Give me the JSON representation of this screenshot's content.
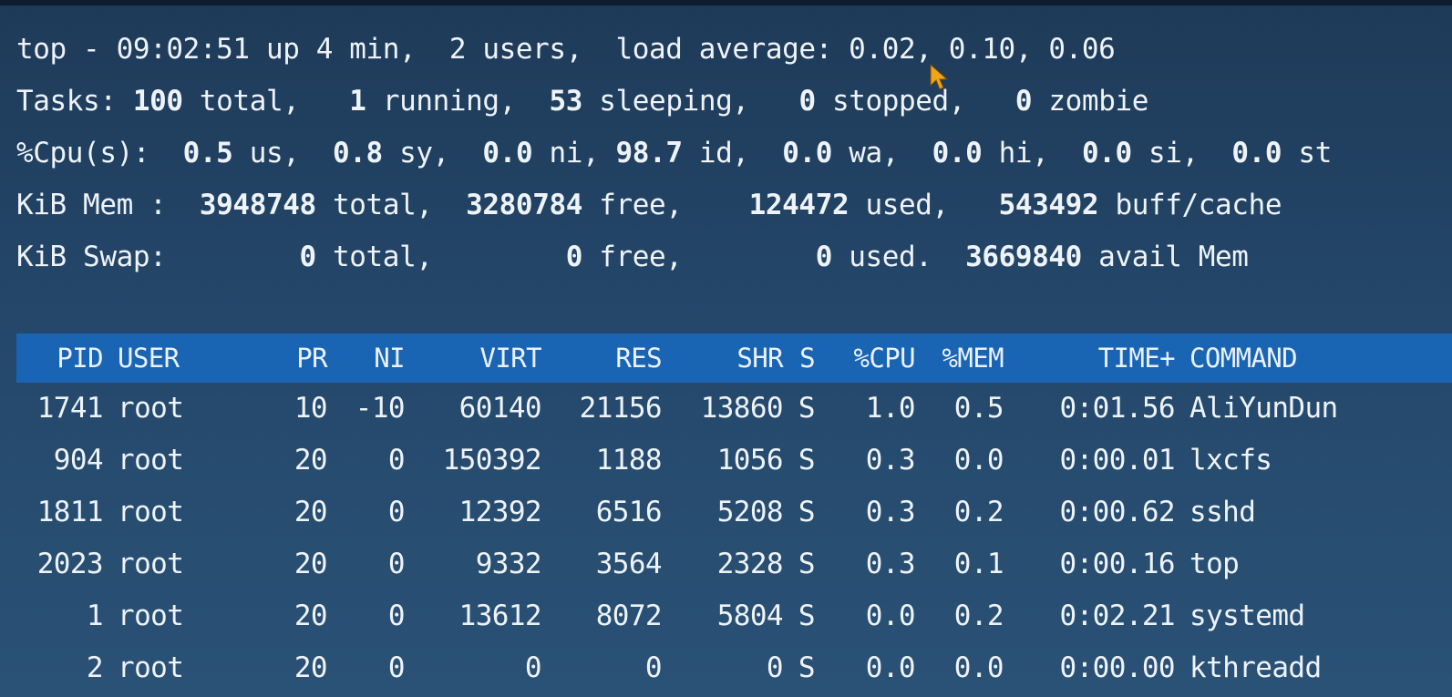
{
  "summary": {
    "l1": {
      "pre": "top - 09:02:51 up 4 min,  2 users,  load average: 0.02, 0.10, 0.06"
    },
    "l2": {
      "label": "Tasks: ",
      "total": "100",
      "total_lbl": " total,   ",
      "running": "1",
      "running_lbl": " running,  ",
      "sleeping": "53",
      "sleeping_lbl": " sleeping,   ",
      "stopped": "0",
      "stopped_lbl": " stopped,   ",
      "zombie": "0",
      "zombie_lbl": " zombie"
    },
    "l3": {
      "label": "%Cpu(s):  ",
      "us": "0.5",
      "us_lbl": " us,  ",
      "sy": "0.8",
      "sy_lbl": " sy,  ",
      "ni": "0.0",
      "ni_lbl": " ni, ",
      "id": "98.7",
      "id_lbl": " id,  ",
      "wa": "0.0",
      "wa_lbl": " wa,  ",
      "hi": "0.0",
      "hi_lbl": " hi,  ",
      "si": "0.0",
      "si_lbl": " si,  ",
      "st": "0.0",
      "st_lbl": " st"
    },
    "l4": {
      "label": "KiB Mem :  ",
      "total": "3948748",
      "total_lbl": " total,  ",
      "free": "3280784",
      "free_lbl": " free,    ",
      "used": "124472",
      "used_lbl": " used,   ",
      "cache": "543492",
      "cache_lbl": " buff/cache"
    },
    "l5": {
      "label": "KiB Swap:        ",
      "total": "0",
      "total_lbl": " total,        ",
      "free": "0",
      "free_lbl": " free,        ",
      "used": "0",
      "used_lbl": " used.  ",
      "avail": "3669840",
      "avail_lbl": " avail Mem"
    }
  },
  "columns": {
    "pid": "PID",
    "user": "USER",
    "pr": "PR",
    "ni": "NI",
    "virt": "VIRT",
    "res": "RES",
    "shr": "SHR",
    "s": "S",
    "cpu": "%CPU",
    "mem": "%MEM",
    "time": "TIME+",
    "command": "COMMAND"
  },
  "processes": [
    {
      "pid": "1741",
      "user": "root",
      "pr": "10",
      "ni": "-10",
      "virt": "60140",
      "res": "21156",
      "shr": "13860",
      "s": "S",
      "cpu": "1.0",
      "mem": "0.5",
      "time": "0:01.56",
      "command": "AliYunDun"
    },
    {
      "pid": "904",
      "user": "root",
      "pr": "20",
      "ni": "0",
      "virt": "150392",
      "res": "1188",
      "shr": "1056",
      "s": "S",
      "cpu": "0.3",
      "mem": "0.0",
      "time": "0:00.01",
      "command": "lxcfs"
    },
    {
      "pid": "1811",
      "user": "root",
      "pr": "20",
      "ni": "0",
      "virt": "12392",
      "res": "6516",
      "shr": "5208",
      "s": "S",
      "cpu": "0.3",
      "mem": "0.2",
      "time": "0:00.62",
      "command": "sshd"
    },
    {
      "pid": "2023",
      "user": "root",
      "pr": "20",
      "ni": "0",
      "virt": "9332",
      "res": "3564",
      "shr": "2328",
      "s": "S",
      "cpu": "0.3",
      "mem": "0.1",
      "time": "0:00.16",
      "command": "top"
    },
    {
      "pid": "1",
      "user": "root",
      "pr": "20",
      "ni": "0",
      "virt": "13612",
      "res": "8072",
      "shr": "5804",
      "s": "S",
      "cpu": "0.0",
      "mem": "0.2",
      "time": "0:02.21",
      "command": "systemd"
    },
    {
      "pid": "2",
      "user": "root",
      "pr": "20",
      "ni": "0",
      "virt": "0",
      "res": "0",
      "shr": "0",
      "s": "S",
      "cpu": "0.0",
      "mem": "0.0",
      "time": "0:00.00",
      "command": "kthreadd"
    }
  ],
  "colors": {
    "background": "#24476a",
    "header_bar": "#1a64b4",
    "text": "#eef3f8",
    "cursor": "#f2a516"
  },
  "icons": {
    "cursor": "mouse-pointer-icon"
  }
}
